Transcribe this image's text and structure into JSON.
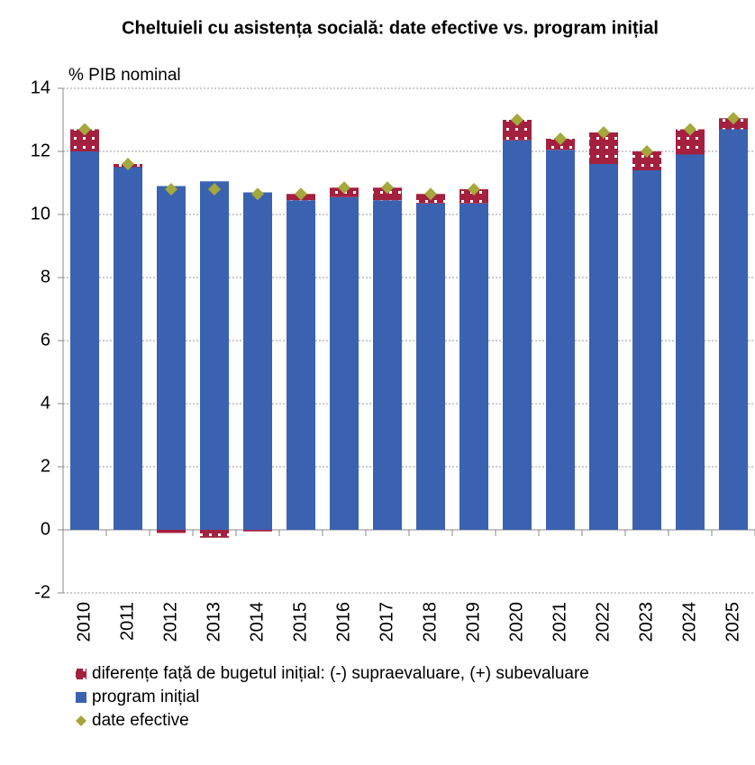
{
  "chart_data": {
    "type": "stacked_bar",
    "title": "Cheltuieli cu asistența socială: date efective vs. program inițial",
    "y_label": "% PIB nominal",
    "categories": [
      "2010",
      "2011",
      "2012",
      "2013",
      "2014",
      "2015",
      "2016",
      "2017",
      "2018",
      "2019",
      "2020",
      "2021",
      "2022",
      "2023",
      "2024",
      "2025"
    ],
    "series": [
      {
        "name": "diferențe față de bugetul inițial: (-) supraevaluare, (+) subevaluare",
        "color": "#a3203f",
        "kind": "diff",
        "values": [
          0.7,
          0.1,
          -0.1,
          -0.25,
          -0.05,
          0.2,
          0.3,
          0.4,
          0.3,
          0.45,
          0.65,
          0.35,
          1.0,
          0.6,
          0.8,
          0.35
        ]
      },
      {
        "name": "program inițial",
        "color": "#3b62b0",
        "kind": "bar",
        "values": [
          12.0,
          11.5,
          10.9,
          11.05,
          10.7,
          10.45,
          10.55,
          10.45,
          10.35,
          10.35,
          12.35,
          12.05,
          11.6,
          11.4,
          11.9,
          12.7
        ]
      },
      {
        "name": "date efective",
        "color": "#a5a83c",
        "kind": "marker",
        "values": [
          12.7,
          11.6,
          10.8,
          10.8,
          10.65,
          10.65,
          10.85,
          10.85,
          10.65,
          10.8,
          13.0,
          12.4,
          12.6,
          12.0,
          12.7,
          13.05
        ]
      }
    ],
    "ylim": [
      -2,
      14
    ],
    "yticks": [
      -2,
      0,
      2,
      4,
      6,
      8,
      10,
      12,
      14
    ],
    "grid": true
  }
}
